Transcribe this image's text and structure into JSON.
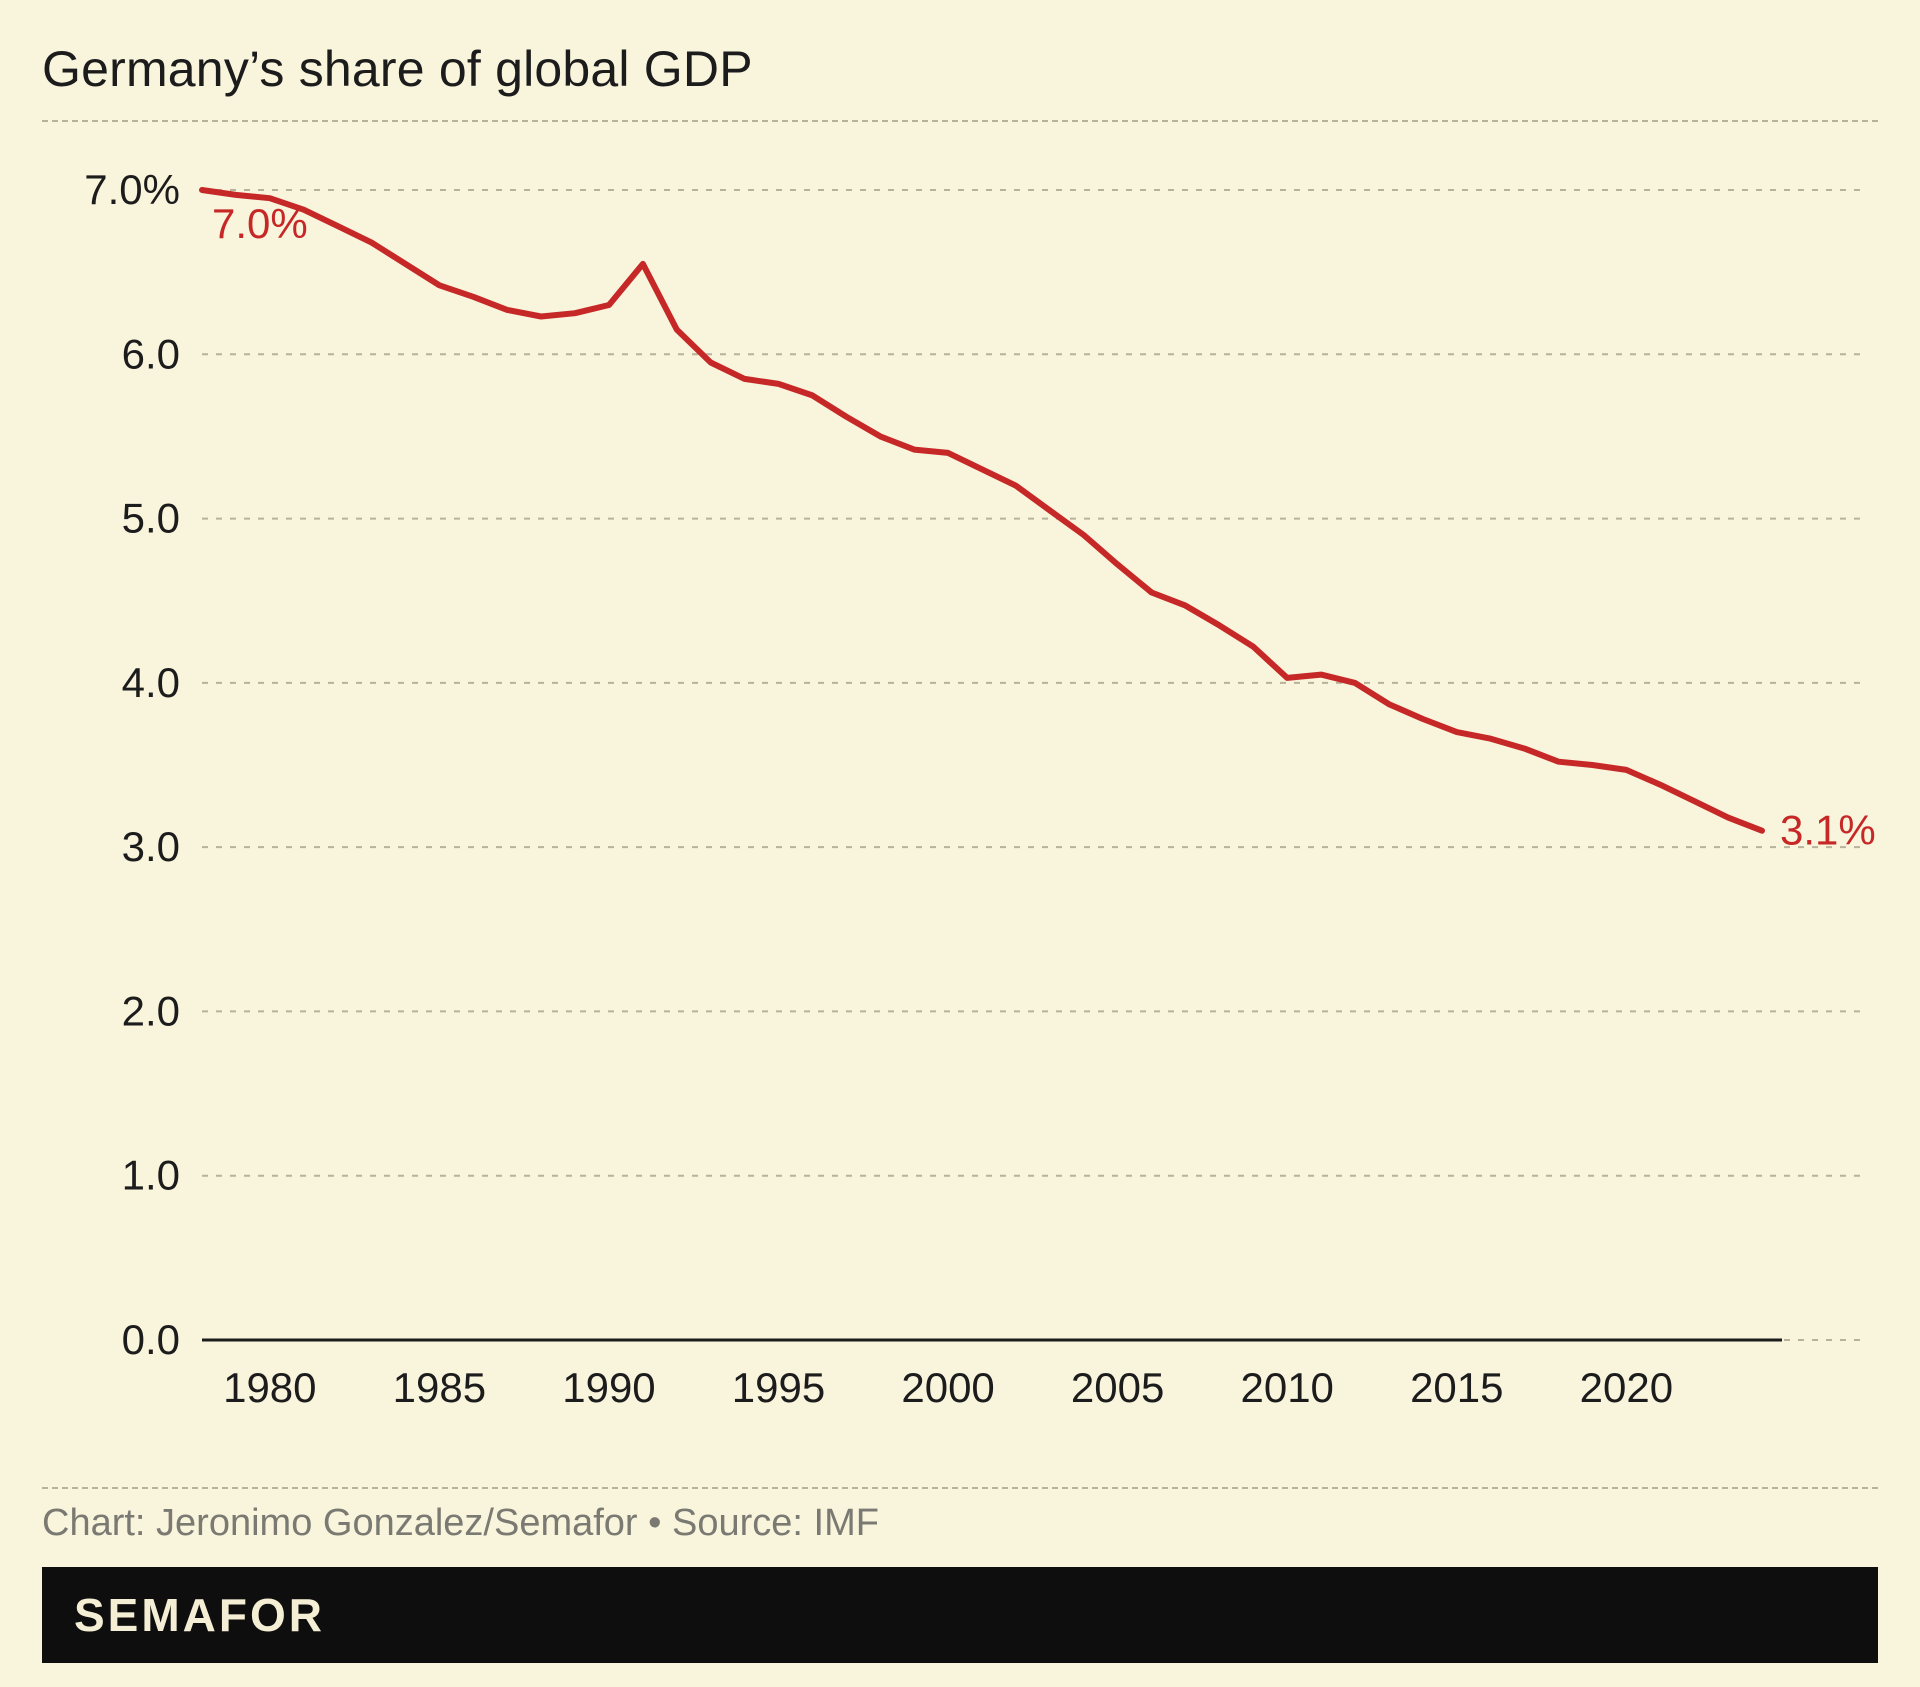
{
  "title": "Germany’s share of global GDP",
  "credit": "Chart: Jeronimo Gonzalez/Semafor • Source: IMF",
  "brand": "SEMAFOR",
  "colors": {
    "background": "#f9f4dc",
    "text": "#1c1c1c",
    "muted_text": "#7a7a72",
    "gridline": "#b8b29a",
    "axis": "#1c1c1c",
    "series": "#c62828",
    "footer_bg": "#0e0e0e",
    "footer_fg": "#f4eed4"
  },
  "chart": {
    "type": "line",
    "x": {
      "min": 1978,
      "max": 2024,
      "ticks": [
        1980,
        1985,
        1990,
        1995,
        2000,
        2005,
        2010,
        2015,
        2020
      ]
    },
    "y": {
      "min": 0.0,
      "max": 7.0,
      "ticks": [
        {
          "v": 0.0,
          "label": "0.0"
        },
        {
          "v": 1.0,
          "label": "1.0"
        },
        {
          "v": 2.0,
          "label": "2.0"
        },
        {
          "v": 3.0,
          "label": "3.0"
        },
        {
          "v": 4.0,
          "label": "4.0"
        },
        {
          "v": 5.0,
          "label": "5.0"
        },
        {
          "v": 6.0,
          "label": "6.0"
        },
        {
          "v": 7.0,
          "label": "7.0%"
        }
      ]
    },
    "line_width": 6,
    "grid_dash": "6 8",
    "start_label": "7.0%",
    "end_label": "3.1%",
    "title_fontsize": 50,
    "tick_fontsize": 42,
    "callout_fontsize": 42,
    "series": [
      {
        "x": 1978,
        "y": 7.0
      },
      {
        "x": 1979,
        "y": 6.97
      },
      {
        "x": 1980,
        "y": 6.95
      },
      {
        "x": 1981,
        "y": 6.88
      },
      {
        "x": 1982,
        "y": 6.78
      },
      {
        "x": 1983,
        "y": 6.68
      },
      {
        "x": 1984,
        "y": 6.55
      },
      {
        "x": 1985,
        "y": 6.42
      },
      {
        "x": 1986,
        "y": 6.35
      },
      {
        "x": 1987,
        "y": 6.27
      },
      {
        "x": 1988,
        "y": 6.23
      },
      {
        "x": 1989,
        "y": 6.25
      },
      {
        "x": 1990,
        "y": 6.3
      },
      {
        "x": 1991,
        "y": 6.55
      },
      {
        "x": 1992,
        "y": 6.15
      },
      {
        "x": 1993,
        "y": 5.95
      },
      {
        "x": 1994,
        "y": 5.85
      },
      {
        "x": 1995,
        "y": 5.82
      },
      {
        "x": 1996,
        "y": 5.75
      },
      {
        "x": 1997,
        "y": 5.62
      },
      {
        "x": 1998,
        "y": 5.5
      },
      {
        "x": 1999,
        "y": 5.42
      },
      {
        "x": 2000,
        "y": 5.4
      },
      {
        "x": 2001,
        "y": 5.3
      },
      {
        "x": 2002,
        "y": 5.2
      },
      {
        "x": 2003,
        "y": 5.05
      },
      {
        "x": 2004,
        "y": 4.9
      },
      {
        "x": 2005,
        "y": 4.72
      },
      {
        "x": 2006,
        "y": 4.55
      },
      {
        "x": 2007,
        "y": 4.47
      },
      {
        "x": 2008,
        "y": 4.35
      },
      {
        "x": 2009,
        "y": 4.22
      },
      {
        "x": 2010,
        "y": 4.03
      },
      {
        "x": 2011,
        "y": 4.05
      },
      {
        "x": 2012,
        "y": 4.0
      },
      {
        "x": 2013,
        "y": 3.87
      },
      {
        "x": 2014,
        "y": 3.78
      },
      {
        "x": 2015,
        "y": 3.7
      },
      {
        "x": 2016,
        "y": 3.66
      },
      {
        "x": 2017,
        "y": 3.6
      },
      {
        "x": 2018,
        "y": 3.52
      },
      {
        "x": 2019,
        "y": 3.5
      },
      {
        "x": 2020,
        "y": 3.47
      },
      {
        "x": 2021,
        "y": 3.38
      },
      {
        "x": 2022,
        "y": 3.28
      },
      {
        "x": 2023,
        "y": 3.18
      },
      {
        "x": 2024,
        "y": 3.1
      }
    ]
  }
}
